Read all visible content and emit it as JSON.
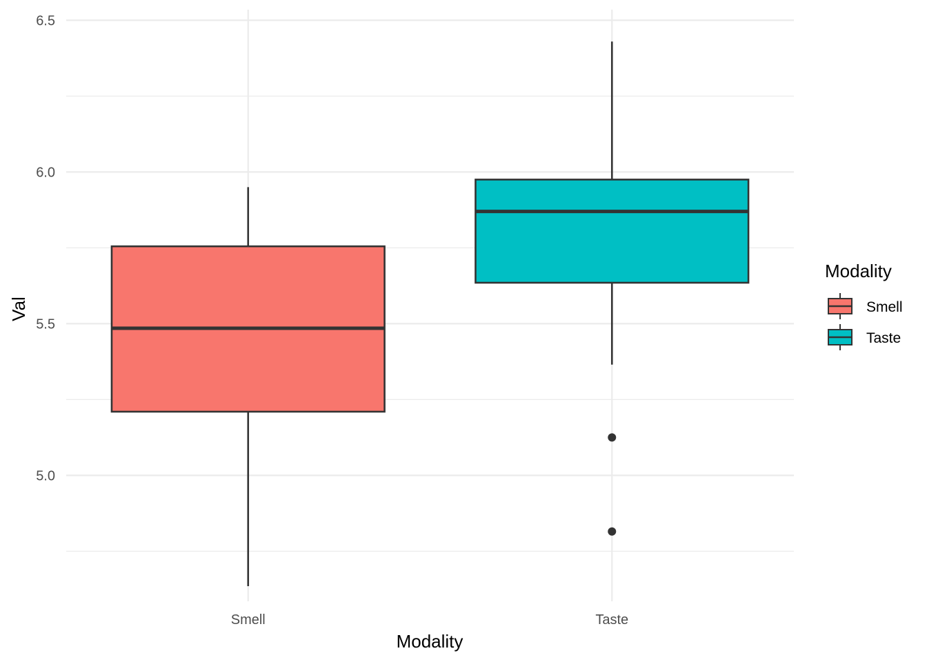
{
  "chart_data": {
    "type": "boxplot",
    "title": "",
    "xlabel": "Modality",
    "ylabel": "Val",
    "ylim": [
      4.585,
      6.535
    ],
    "y_ticks": [
      5.0,
      5.5,
      6.0,
      6.5
    ],
    "y_tick_labels": [
      "5.0",
      "5.5",
      "6.0",
      "6.5"
    ],
    "y_minor_ticks": [
      4.75,
      5.25,
      5.75,
      6.25
    ],
    "categories": [
      "Smell",
      "Taste"
    ],
    "grid": true,
    "legend": {
      "title": "Modality",
      "position": "right",
      "entries": [
        "Smell",
        "Taste"
      ]
    },
    "colors": {
      "Smell": "#F8766D",
      "Taste": "#00BFC4"
    },
    "boxes": [
      {
        "category": "Smell",
        "whisker_low": 4.635,
        "q1": 5.21,
        "median": 5.485,
        "q3": 5.755,
        "whisker_high": 5.95,
        "outliers": []
      },
      {
        "category": "Taste",
        "whisker_low": 5.365,
        "q1": 5.635,
        "median": 5.87,
        "q3": 5.975,
        "whisker_high": 6.43,
        "outliers": [
          5.125,
          4.815
        ]
      }
    ]
  }
}
